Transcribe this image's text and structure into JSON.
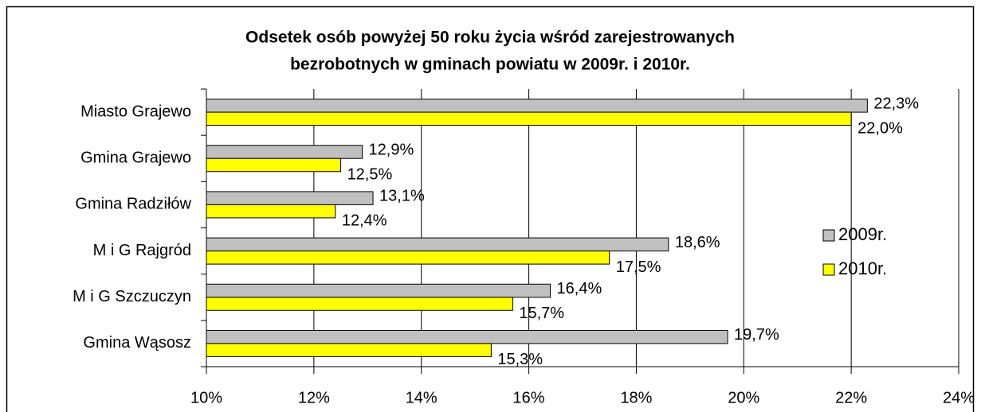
{
  "chart_data": {
    "type": "barh",
    "title": [
      "Odsetek osób powyżej 50 roku życia wśród zarejestrowanych",
      "bezrobotnych w gminach powiatu w 2009r. i 2010r."
    ],
    "categories": [
      "Miasto Grajewo",
      "Gmina Grajewo",
      "Gmina Radziłów",
      "M i G Rajgród",
      "M i G Szczuczyn",
      "Gmina Wąsosz"
    ],
    "series": [
      {
        "name": "2009r.",
        "color": "#c0c0c0",
        "values": [
          22.3,
          12.9,
          13.1,
          18.6,
          16.4,
          19.7
        ],
        "value_labels": [
          "22,3%",
          "12,9%",
          "13,1%",
          "18,6%",
          "16,4%",
          "19,7%"
        ]
      },
      {
        "name": "2010r.",
        "color": "#ffff00",
        "values": [
          22.0,
          12.5,
          12.4,
          17.5,
          15.7,
          15.3
        ],
        "value_labels": [
          "22,0%",
          "12,5%",
          "12,4%",
          "17,5%",
          "15,7%",
          "15,3%"
        ]
      }
    ],
    "xlim": [
      10,
      24
    ],
    "xticks": [
      {
        "value": 10,
        "label": "10%"
      },
      {
        "value": 12,
        "label": "12%"
      },
      {
        "value": 14,
        "label": "14%"
      },
      {
        "value": 16,
        "label": "16%"
      },
      {
        "value": 18,
        "label": "18%"
      },
      {
        "value": 20,
        "label": "20%"
      },
      {
        "value": 22,
        "label": "22%"
      },
      {
        "value": 24,
        "label": "24%"
      }
    ],
    "grid": true,
    "legend": "right"
  }
}
